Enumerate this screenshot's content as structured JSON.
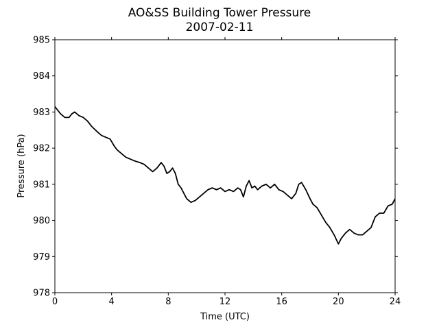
{
  "chart_data": {
    "type": "line",
    "title": "AO&SS Building Tower Pressure",
    "subtitle": "2007-02-11",
    "xlabel": "Time (UTC)",
    "ylabel": "Pressure (hPa)",
    "xlim": [
      0,
      24
    ],
    "ylim": [
      978,
      985
    ],
    "xticks": [
      "0",
      "4",
      "8",
      "12",
      "16",
      "20",
      "24"
    ],
    "yticks": [
      "978",
      "979",
      "980",
      "981",
      "982",
      "983",
      "984",
      "985"
    ],
    "grid": false,
    "line_color": "#000000",
    "series": [
      {
        "x": [
          0,
          0.2,
          0.4,
          0.7,
          1.0,
          1.2,
          1.4,
          1.7,
          2.0,
          2.3,
          2.6,
          3.0,
          3.3,
          3.6,
          3.9,
          4.2,
          4.4,
          4.7,
          5.0,
          5.3,
          5.6,
          6.0,
          6.3,
          6.6,
          6.9,
          7.2,
          7.5,
          7.7,
          7.9,
          8.1,
          8.3,
          8.5,
          8.7,
          8.9,
          9.1,
          9.3,
          9.6,
          9.9,
          10.2,
          10.5,
          10.8,
          11.1,
          11.4,
          11.7,
          12.0,
          12.3,
          12.6,
          12.9,
          13.1,
          13.3,
          13.5,
          13.7,
          13.9,
          14.1,
          14.3,
          14.6,
          14.9,
          15.2,
          15.5,
          15.8,
          16.1,
          16.4,
          16.7,
          17.0,
          17.2,
          17.4,
          17.7,
          18.0,
          18.2,
          18.5,
          18.8,
          19.1,
          19.4,
          19.7,
          20.0,
          20.2,
          20.5,
          20.8,
          21.1,
          21.4,
          21.7,
          22.0,
          22.3,
          22.6,
          22.9,
          23.2,
          23.5,
          23.8,
          24.0
        ],
        "y": [
          983.15,
          983.05,
          982.95,
          982.85,
          982.85,
          982.95,
          983.0,
          982.9,
          982.85,
          982.75,
          982.6,
          982.45,
          982.35,
          982.3,
          982.25,
          982.05,
          981.95,
          981.85,
          981.75,
          981.7,
          981.65,
          981.6,
          981.55,
          981.45,
          981.35,
          981.45,
          981.6,
          981.5,
          981.3,
          981.35,
          981.45,
          981.3,
          981.0,
          980.9,
          980.75,
          980.6,
          980.5,
          980.55,
          980.65,
          980.75,
          980.85,
          980.9,
          980.85,
          980.9,
          980.8,
          980.85,
          980.8,
          980.9,
          980.85,
          980.65,
          980.95,
          981.1,
          980.9,
          980.95,
          980.85,
          980.95,
          981.0,
          980.9,
          981.0,
          980.85,
          980.8,
          980.7,
          980.6,
          980.75,
          981.0,
          981.05,
          980.85,
          980.6,
          980.45,
          980.35,
          980.15,
          979.95,
          979.8,
          979.6,
          979.35,
          979.5,
          979.65,
          979.75,
          979.65,
          979.6,
          979.6,
          979.7,
          979.8,
          980.1,
          980.2,
          980.2,
          980.4,
          980.45,
          980.6
        ]
      }
    ]
  }
}
